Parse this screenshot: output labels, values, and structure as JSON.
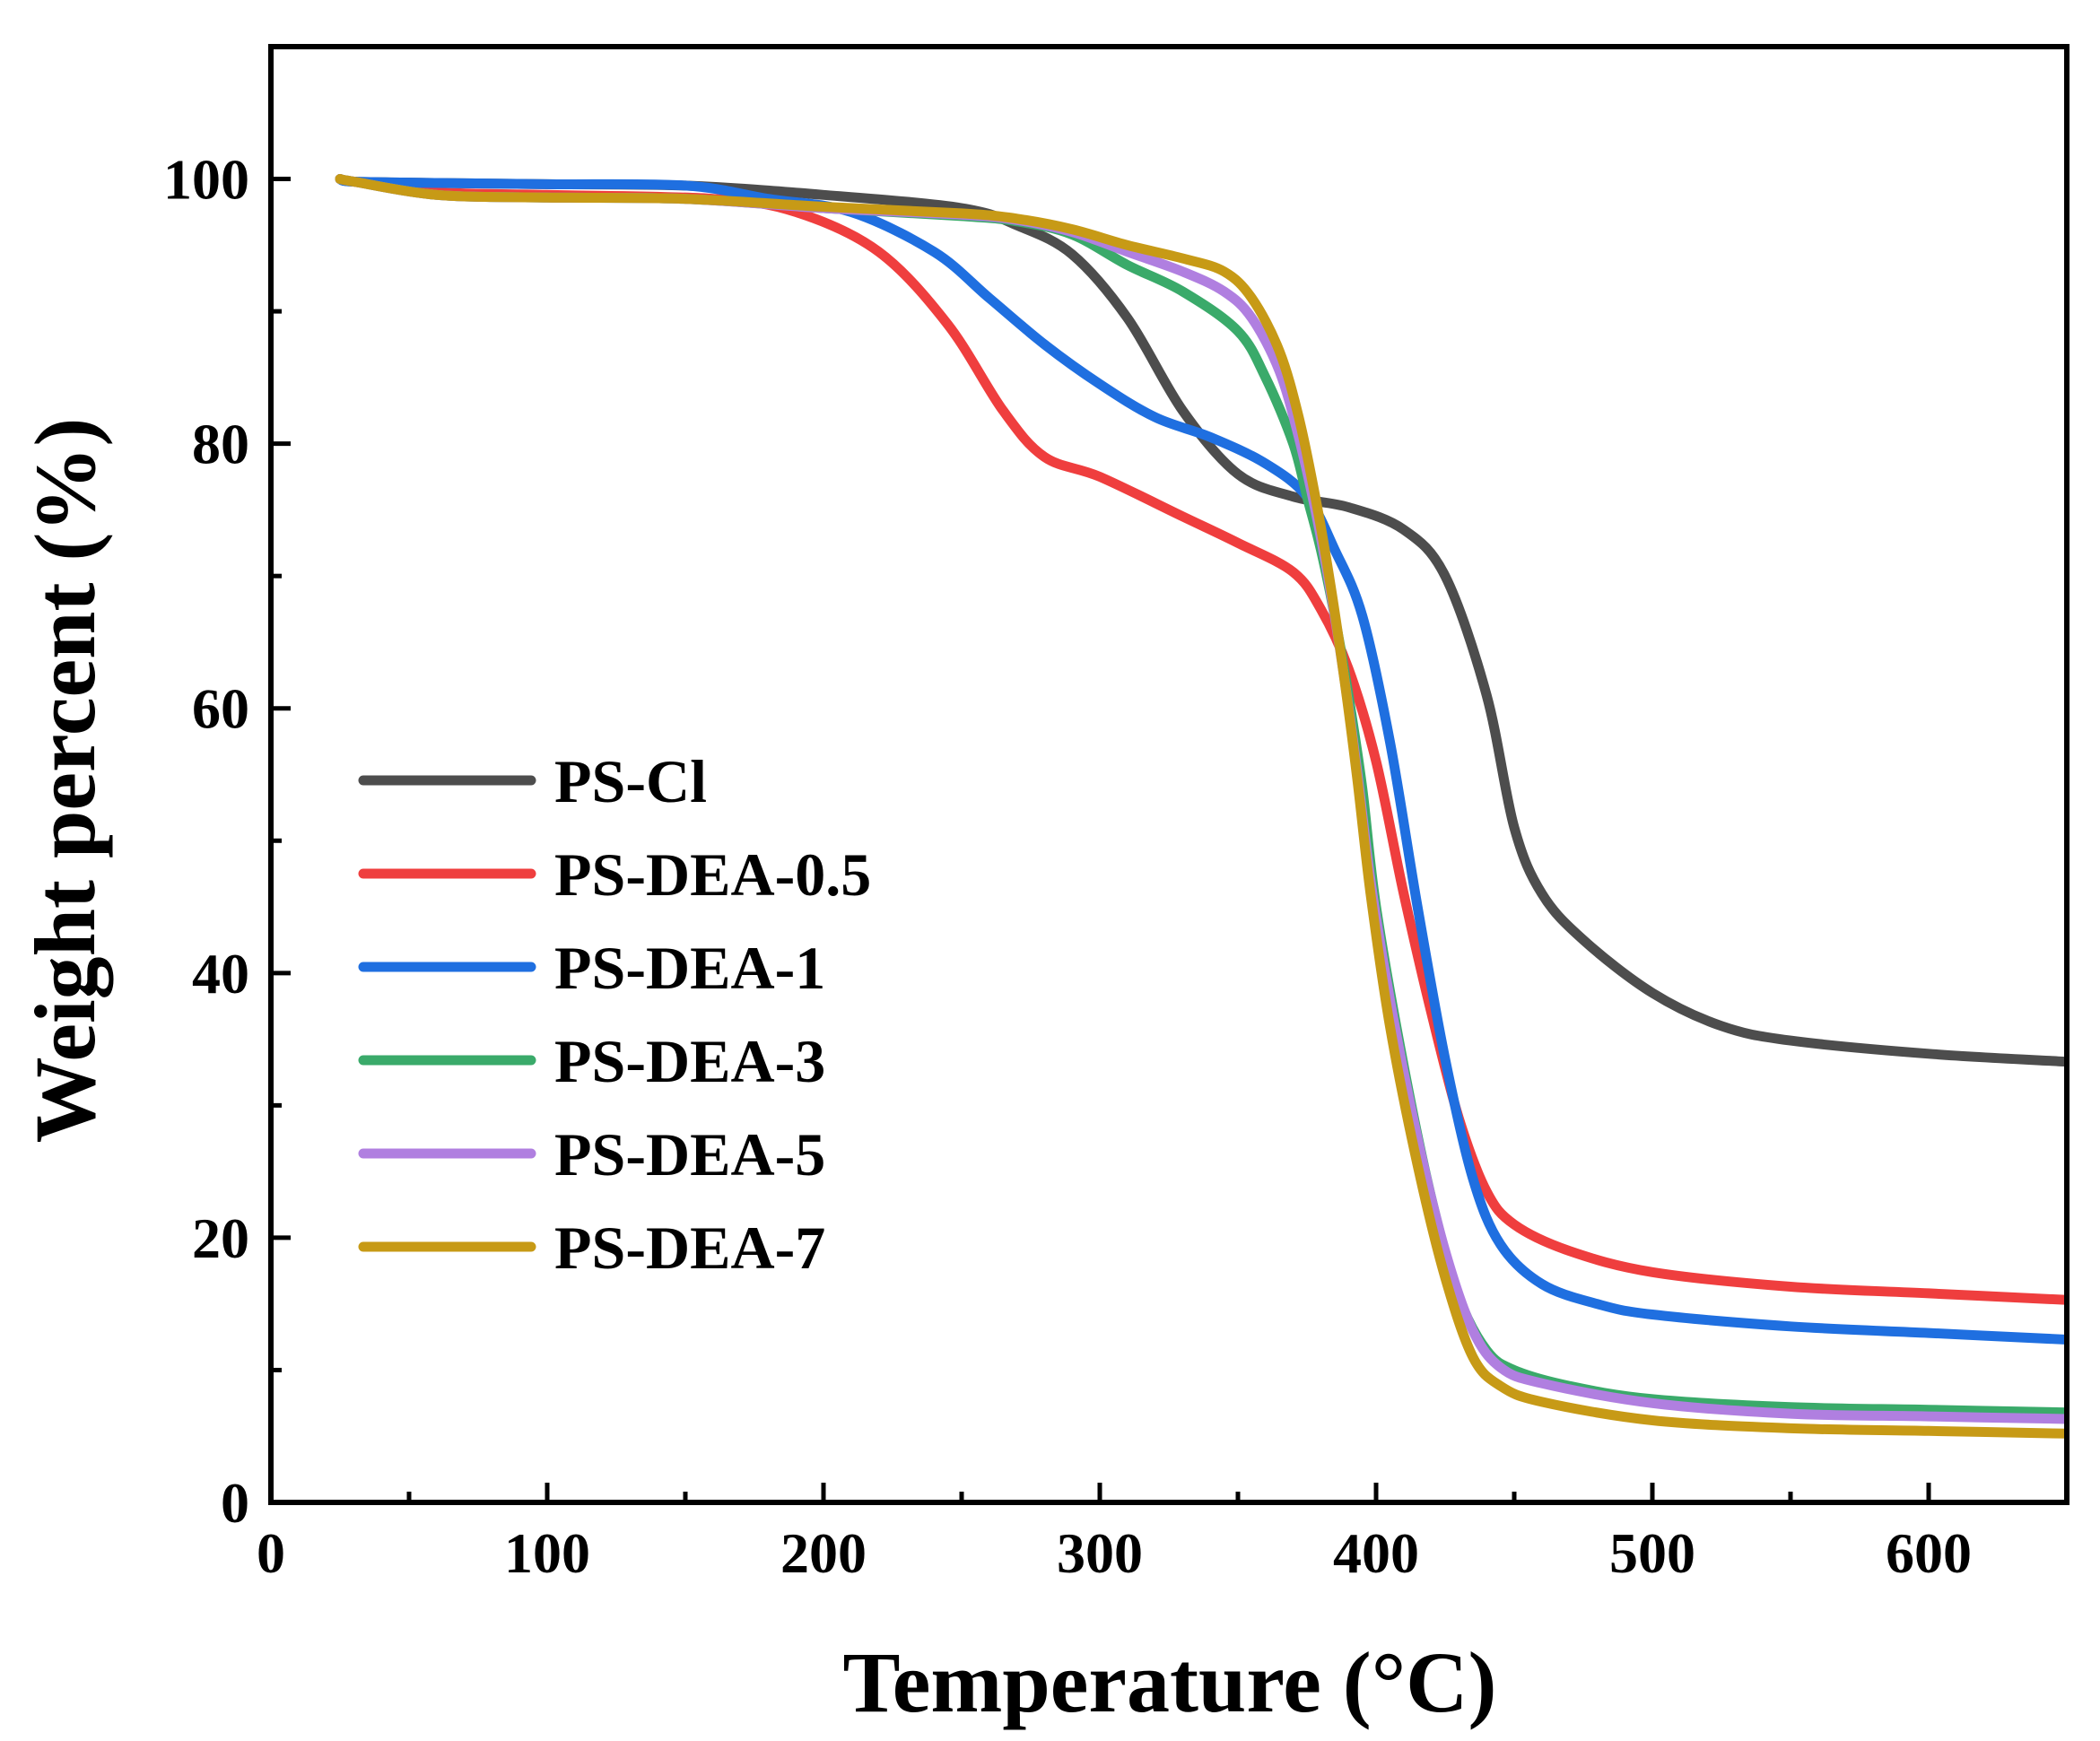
{
  "chart_data": {
    "type": "line",
    "title": "",
    "xlabel": "Temperature (°C)",
    "ylabel": "Weight percent (%)",
    "xlim": [
      0,
      650
    ],
    "ylim": [
      0,
      110
    ],
    "xticks": [
      0,
      100,
      200,
      300,
      400,
      500,
      600
    ],
    "yticks": [
      0,
      20,
      40,
      60,
      80,
      100
    ],
    "xtick_labels": [
      "0",
      "100",
      "200",
      "300",
      "400",
      "500",
      "600"
    ],
    "ytick_labels": [
      "0",
      "20",
      "40",
      "60",
      "80",
      "100"
    ],
    "grid": false,
    "legend_position": "center-left",
    "series": [
      {
        "name": "PS-Cl",
        "color": "#4d4d4d",
        "x": [
          25,
          30,
          60,
          100,
          150,
          200,
          250,
          270,
          290,
          310,
          330,
          350,
          370,
          390,
          410,
          425,
          440,
          450,
          460,
          475,
          500,
          525,
          550,
          600,
          650
        ],
        "y": [
          100,
          99.8,
          99.7,
          99.6,
          99.5,
          98.8,
          97.8,
          96.5,
          94.3,
          89.5,
          82.5,
          77.7,
          76,
          75.2,
          73.5,
          70,
          61,
          51,
          46,
          42.5,
          38.5,
          36,
          34.9,
          33.9,
          33.3
        ]
      },
      {
        "name": "PS-DEA-0.5",
        "color": "#ef3e3e",
        "x": [
          25,
          30,
          60,
          100,
          160,
          190,
          220,
          245,
          265,
          280,
          300,
          330,
          350,
          370,
          380,
          390,
          400,
          410,
          420,
          430,
          440,
          450,
          470,
          500,
          550,
          600,
          650
        ],
        "y": [
          100,
          99.8,
          99,
          98.8,
          98.5,
          97.5,
          94.5,
          89,
          82.5,
          79,
          77.5,
          74.5,
          72.5,
          70.3,
          67.5,
          63,
          56,
          46,
          37,
          29,
          23.5,
          21,
          19,
          17.4,
          16.3,
          15.8,
          15.3
        ]
      },
      {
        "name": "PS-DEA-1",
        "color": "#1f6fe0",
        "x": [
          25,
          30,
          60,
          100,
          150,
          180,
          210,
          240,
          260,
          280,
          300,
          320,
          340,
          360,
          375,
          385,
          395,
          405,
          415,
          425,
          435,
          445,
          460,
          480,
          500,
          550,
          600,
          650
        ],
        "y": [
          100,
          99.8,
          99.7,
          99.6,
          99.5,
          98.5,
          97.5,
          94.5,
          91,
          87.5,
          84.5,
          82,
          80.5,
          78.5,
          76,
          72,
          67,
          57.5,
          45,
          33.5,
          24.5,
          19.5,
          16.5,
          15,
          14.2,
          13.3,
          12.8,
          12.3
        ]
      },
      {
        "name": "PS-DEA-3",
        "color": "#3aaa6a",
        "x": [
          25,
          30,
          60,
          100,
          150,
          200,
          250,
          270,
          290,
          310,
          330,
          350,
          360,
          370,
          375,
          380,
          385,
          390,
          395,
          400,
          410,
          420,
          430,
          440,
          450,
          470,
          500,
          550,
          600,
          650
        ],
        "y": [
          100,
          99.8,
          98.8,
          98.6,
          98.5,
          97.8,
          97.2,
          96.8,
          95.8,
          93.5,
          91.5,
          88.5,
          85,
          80,
          76,
          72,
          67,
          61,
          54,
          45,
          33,
          23,
          15.5,
          11.5,
          10,
          8.8,
          7.8,
          7.2,
          7,
          6.8
        ]
      },
      {
        "name": "PS-DEA-5",
        "color": "#b07fe0",
        "x": [
          25,
          30,
          60,
          100,
          150,
          200,
          250,
          270,
          290,
          310,
          330,
          345,
          355,
          365,
          372,
          378,
          383,
          388,
          393,
          398,
          405,
          415,
          425,
          435,
          445,
          460,
          500,
          550,
          600,
          650
        ],
        "y": [
          100,
          99.8,
          98.8,
          98.6,
          98.5,
          97.8,
          97.3,
          96.9,
          96,
          94.5,
          93,
          91.5,
          89.5,
          85.5,
          80.5,
          75,
          69.5,
          63,
          55.5,
          47,
          38,
          27.5,
          19,
          13,
          10.2,
          9,
          7.5,
          6.7,
          6.5,
          6.3
        ]
      },
      {
        "name": "PS-DEA-7",
        "color": "#c79a16",
        "x": [
          25,
          30,
          60,
          100,
          150,
          200,
          250,
          270,
          290,
          310,
          330,
          345,
          355,
          365,
          372,
          378,
          383,
          388,
          393,
          398,
          405,
          415,
          425,
          435,
          445,
          460,
          500,
          550,
          600,
          650
        ],
        "y": [
          100,
          99.8,
          98.8,
          98.6,
          98.5,
          97.9,
          97.4,
          97,
          96.2,
          95,
          94,
          93,
          91,
          87,
          82,
          76,
          70,
          63,
          55,
          46,
          36,
          25.5,
          17,
          11,
          8.8,
          7.6,
          6.2,
          5.6,
          5.4,
          5.2
        ]
      }
    ]
  }
}
